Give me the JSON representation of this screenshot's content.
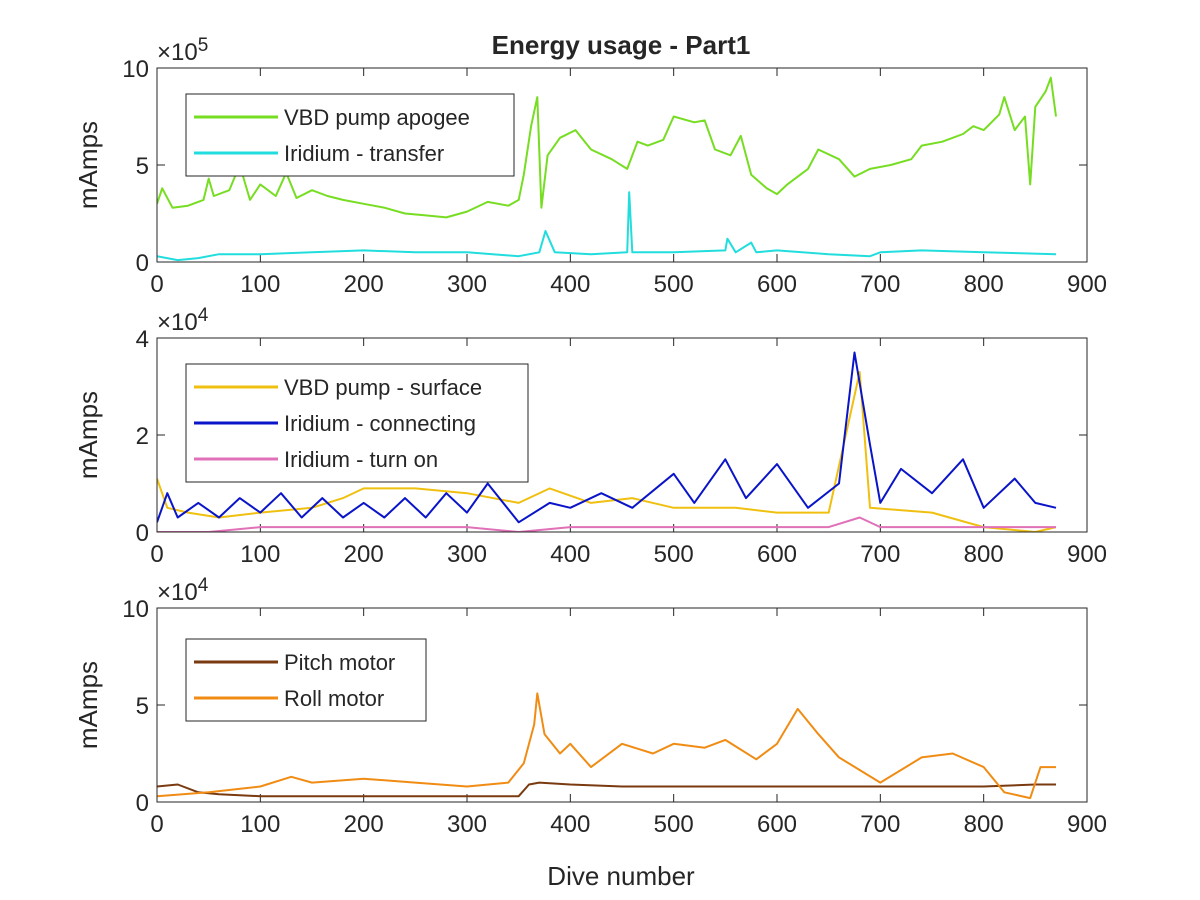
{
  "figure": {
    "title": "Energy usage - Part1",
    "xlabel": "Dive number"
  },
  "chart_data": [
    {
      "type": "line",
      "title": "Energy usage - Part1",
      "xlabel": "",
      "ylabel": "mAmps",
      "y_exponent_label": "×10",
      "y_exponent": "5",
      "scale": 100000,
      "xlim": [
        0,
        900
      ],
      "ylim": [
        0,
        10
      ],
      "xticks": [
        0,
        100,
        200,
        300,
        400,
        500,
        600,
        700,
        800,
        900
      ],
      "yticks": [
        0,
        5,
        10
      ],
      "grid": false,
      "legend_position": "top-left",
      "series": [
        {
          "name": "VBD pump apogee",
          "color": "#77dd22",
          "points": [
            [
              0,
              3.0
            ],
            [
              5,
              3.8
            ],
            [
              15,
              2.8
            ],
            [
              30,
              2.9
            ],
            [
              45,
              3.2
            ],
            [
              50,
              4.3
            ],
            [
              55,
              3.4
            ],
            [
              70,
              3.7
            ],
            [
              80,
              5.0
            ],
            [
              90,
              3.2
            ],
            [
              100,
              4.0
            ],
            [
              115,
              3.4
            ],
            [
              125,
              4.6
            ],
            [
              135,
              3.3
            ],
            [
              150,
              3.7
            ],
            [
              165,
              3.4
            ],
            [
              180,
              3.2
            ],
            [
              200,
              3.0
            ],
            [
              220,
              2.8
            ],
            [
              240,
              2.5
            ],
            [
              260,
              2.4
            ],
            [
              280,
              2.3
            ],
            [
              300,
              2.6
            ],
            [
              320,
              3.1
            ],
            [
              340,
              2.9
            ],
            [
              350,
              3.2
            ],
            [
              355,
              4.5
            ],
            [
              362,
              7.0
            ],
            [
              368,
              8.5
            ],
            [
              372,
              2.8
            ],
            [
              378,
              5.5
            ],
            [
              390,
              6.4
            ],
            [
              405,
              6.8
            ],
            [
              420,
              5.8
            ],
            [
              440,
              5.3
            ],
            [
              455,
              4.8
            ],
            [
              465,
              6.2
            ],
            [
              475,
              6.0
            ],
            [
              490,
              6.3
            ],
            [
              500,
              7.5
            ],
            [
              520,
              7.2
            ],
            [
              530,
              7.3
            ],
            [
              540,
              5.8
            ],
            [
              555,
              5.5
            ],
            [
              565,
              6.5
            ],
            [
              575,
              4.5
            ],
            [
              590,
              3.8
            ],
            [
              600,
              3.5
            ],
            [
              610,
              4.0
            ],
            [
              630,
              4.8
            ],
            [
              640,
              5.8
            ],
            [
              660,
              5.3
            ],
            [
              675,
              4.4
            ],
            [
              690,
              4.8
            ],
            [
              710,
              5.0
            ],
            [
              730,
              5.3
            ],
            [
              740,
              6.0
            ],
            [
              760,
              6.2
            ],
            [
              780,
              6.6
            ],
            [
              790,
              7.0
            ],
            [
              800,
              6.8
            ],
            [
              815,
              7.6
            ],
            [
              820,
              8.5
            ],
            [
              830,
              6.8
            ],
            [
              840,
              7.5
            ],
            [
              845,
              4.0
            ],
            [
              850,
              8.0
            ],
            [
              860,
              8.8
            ],
            [
              865,
              9.5
            ],
            [
              870,
              7.5
            ]
          ]
        },
        {
          "name": "Iridium - transfer",
          "color": "#22dddd",
          "points": [
            [
              0,
              0.3
            ],
            [
              20,
              0.1
            ],
            [
              40,
              0.2
            ],
            [
              60,
              0.4
            ],
            [
              100,
              0.4
            ],
            [
              150,
              0.5
            ],
            [
              200,
              0.6
            ],
            [
              250,
              0.5
            ],
            [
              300,
              0.5
            ],
            [
              350,
              0.3
            ],
            [
              370,
              0.5
            ],
            [
              376,
              1.6
            ],
            [
              385,
              0.5
            ],
            [
              420,
              0.4
            ],
            [
              455,
              0.5
            ],
            [
              457,
              3.6
            ],
            [
              460,
              0.5
            ],
            [
              500,
              0.5
            ],
            [
              550,
              0.6
            ],
            [
              552,
              1.2
            ],
            [
              560,
              0.5
            ],
            [
              575,
              1.0
            ],
            [
              580,
              0.5
            ],
            [
              600,
              0.6
            ],
            [
              650,
              0.4
            ],
            [
              690,
              0.3
            ],
            [
              700,
              0.5
            ],
            [
              740,
              0.6
            ],
            [
              800,
              0.5
            ],
            [
              870,
              0.4
            ]
          ]
        }
      ]
    },
    {
      "type": "line",
      "title": "",
      "xlabel": "",
      "ylabel": "mAmps",
      "y_exponent_label": "×10",
      "y_exponent": "4",
      "scale": 10000,
      "xlim": [
        0,
        900
      ],
      "ylim": [
        0,
        4
      ],
      "xticks": [
        0,
        100,
        200,
        300,
        400,
        500,
        600,
        700,
        800,
        900
      ],
      "yticks": [
        0,
        2,
        4
      ],
      "grid": false,
      "legend_position": "top-left",
      "series": [
        {
          "name": "VBD pump - surface",
          "color": "#f0c010",
          "points": [
            [
              0,
              1.1
            ],
            [
              10,
              0.5
            ],
            [
              30,
              0.4
            ],
            [
              60,
              0.3
            ],
            [
              100,
              0.4
            ],
            [
              150,
              0.5
            ],
            [
              180,
              0.7
            ],
            [
              200,
              0.9
            ],
            [
              250,
              0.9
            ],
            [
              300,
              0.8
            ],
            [
              350,
              0.6
            ],
            [
              380,
              0.9
            ],
            [
              420,
              0.6
            ],
            [
              460,
              0.7
            ],
            [
              500,
              0.5
            ],
            [
              560,
              0.5
            ],
            [
              600,
              0.4
            ],
            [
              650,
              0.4
            ],
            [
              680,
              3.3
            ],
            [
              690,
              0.5
            ],
            [
              750,
              0.4
            ],
            [
              800,
              0.1
            ],
            [
              850,
              0.0
            ],
            [
              870,
              0.1
            ]
          ]
        },
        {
          "name": "Iridium - connecting",
          "color": "#0a14c8",
          "points": [
            [
              0,
              0.2
            ],
            [
              10,
              0.8
            ],
            [
              20,
              0.3
            ],
            [
              40,
              0.6
            ],
            [
              60,
              0.3
            ],
            [
              80,
              0.7
            ],
            [
              100,
              0.4
            ],
            [
              120,
              0.8
            ],
            [
              140,
              0.3
            ],
            [
              160,
              0.7
            ],
            [
              180,
              0.3
            ],
            [
              200,
              0.6
            ],
            [
              220,
              0.3
            ],
            [
              240,
              0.7
            ],
            [
              260,
              0.3
            ],
            [
              280,
              0.8
            ],
            [
              300,
              0.4
            ],
            [
              320,
              1.0
            ],
            [
              350,
              0.2
            ],
            [
              380,
              0.6
            ],
            [
              400,
              0.5
            ],
            [
              430,
              0.8
            ],
            [
              460,
              0.5
            ],
            [
              500,
              1.2
            ],
            [
              520,
              0.6
            ],
            [
              550,
              1.5
            ],
            [
              570,
              0.7
            ],
            [
              600,
              1.4
            ],
            [
              630,
              0.5
            ],
            [
              660,
              1.0
            ],
            [
              675,
              3.7
            ],
            [
              690,
              1.8
            ],
            [
              700,
              0.6
            ],
            [
              720,
              1.3
            ],
            [
              750,
              0.8
            ],
            [
              780,
              1.5
            ],
            [
              800,
              0.5
            ],
            [
              830,
              1.1
            ],
            [
              850,
              0.6
            ],
            [
              870,
              0.5
            ]
          ]
        },
        {
          "name": "Iridium - turn on",
          "color": "#e070b8",
          "points": [
            [
              0,
              0.0
            ],
            [
              50,
              0.0
            ],
            [
              100,
              0.1
            ],
            [
              150,
              0.1
            ],
            [
              200,
              0.1
            ],
            [
              250,
              0.1
            ],
            [
              300,
              0.1
            ],
            [
              350,
              0.0
            ],
            [
              400,
              0.1
            ],
            [
              450,
              0.1
            ],
            [
              500,
              0.1
            ],
            [
              550,
              0.1
            ],
            [
              600,
              0.1
            ],
            [
              650,
              0.1
            ],
            [
              680,
              0.3
            ],
            [
              700,
              0.1
            ],
            [
              750,
              0.1
            ],
            [
              800,
              0.1
            ],
            [
              870,
              0.1
            ]
          ]
        }
      ]
    },
    {
      "type": "line",
      "title": "",
      "xlabel": "Dive number",
      "ylabel": "mAmps",
      "y_exponent_label": "×10",
      "y_exponent": "4",
      "scale": 10000,
      "xlim": [
        0,
        900
      ],
      "ylim": [
        0,
        10
      ],
      "xticks": [
        0,
        100,
        200,
        300,
        400,
        500,
        600,
        700,
        800,
        900
      ],
      "yticks": [
        0,
        5,
        10
      ],
      "grid": false,
      "legend_position": "top-left",
      "series": [
        {
          "name": "Pitch motor",
          "color": "#7a3a10",
          "points": [
            [
              0,
              0.8
            ],
            [
              20,
              0.9
            ],
            [
              40,
              0.5
            ],
            [
              60,
              0.4
            ],
            [
              100,
              0.3
            ],
            [
              150,
              0.3
            ],
            [
              200,
              0.3
            ],
            [
              250,
              0.3
            ],
            [
              300,
              0.3
            ],
            [
              350,
              0.3
            ],
            [
              360,
              0.9
            ],
            [
              370,
              1.0
            ],
            [
              400,
              0.9
            ],
            [
              450,
              0.8
            ],
            [
              500,
              0.8
            ],
            [
              550,
              0.8
            ],
            [
              600,
              0.8
            ],
            [
              650,
              0.8
            ],
            [
              700,
              0.8
            ],
            [
              750,
              0.8
            ],
            [
              800,
              0.8
            ],
            [
              850,
              0.9
            ],
            [
              870,
              0.9
            ]
          ]
        },
        {
          "name": "Roll motor",
          "color": "#f08c14",
          "points": [
            [
              0,
              0.3
            ],
            [
              50,
              0.5
            ],
            [
              100,
              0.8
            ],
            [
              130,
              1.3
            ],
            [
              150,
              1.0
            ],
            [
              200,
              1.2
            ],
            [
              250,
              1.0
            ],
            [
              300,
              0.8
            ],
            [
              340,
              1.0
            ],
            [
              355,
              2.0
            ],
            [
              365,
              4.0
            ],
            [
              368,
              5.6
            ],
            [
              375,
              3.5
            ],
            [
              390,
              2.5
            ],
            [
              400,
              3.0
            ],
            [
              420,
              1.8
            ],
            [
              450,
              3.0
            ],
            [
              480,
              2.5
            ],
            [
              500,
              3.0
            ],
            [
              530,
              2.8
            ],
            [
              550,
              3.2
            ],
            [
              580,
              2.2
            ],
            [
              600,
              3.0
            ],
            [
              620,
              4.8
            ],
            [
              640,
              3.5
            ],
            [
              660,
              2.3
            ],
            [
              700,
              1.0
            ],
            [
              740,
              2.3
            ],
            [
              770,
              2.5
            ],
            [
              800,
              1.8
            ],
            [
              820,
              0.5
            ],
            [
              845,
              0.2
            ],
            [
              855,
              1.8
            ],
            [
              870,
              1.8
            ]
          ]
        }
      ]
    }
  ]
}
